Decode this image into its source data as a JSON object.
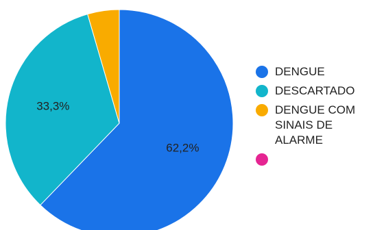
{
  "chart_data": {
    "type": "pie",
    "title": "",
    "slices": [
      {
        "label": "DENGUE",
        "value": 62.2,
        "display": "62,2%",
        "color": "#1a73e8"
      },
      {
        "label": "DESCARTADO",
        "value": 33.3,
        "display": "33,3%",
        "color": "#12b5cb"
      },
      {
        "label": "DENGUE COM SINAIS DE ALARME",
        "value": 4.5,
        "display": "",
        "color": "#f9ab00"
      },
      {
        "label": "",
        "value": 0,
        "display": "",
        "color": "#e52592"
      }
    ],
    "legend_position": "right"
  }
}
